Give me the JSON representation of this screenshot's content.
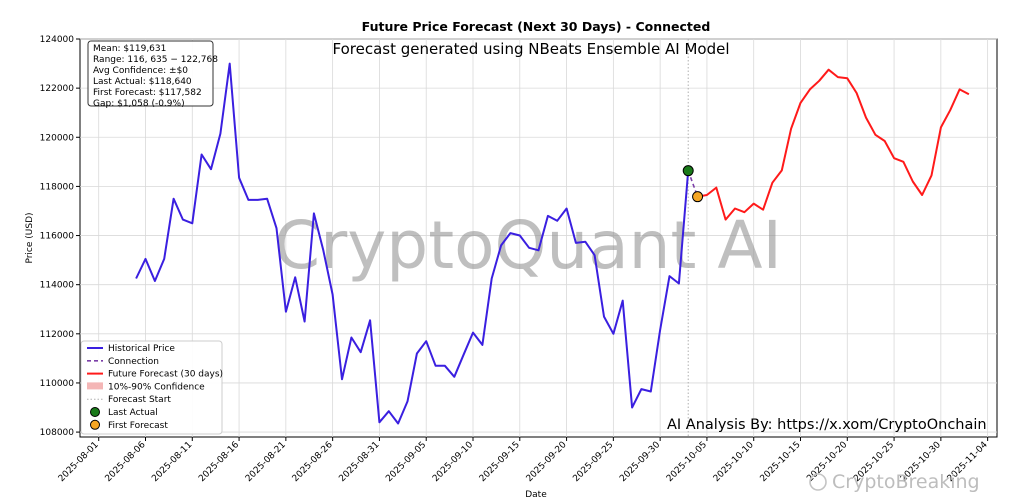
{
  "chart_data": {
    "type": "line",
    "title": "Future Price Forecast (Next 30 Days) - Connected",
    "subtitle": "Forecast generated using NBeats Ensemble AI Model",
    "xlabel": "Date",
    "ylabel": "Price (USD)",
    "ylim": [
      107800,
      124000
    ],
    "xlim": [
      "2025-07-30",
      "2025-11-05"
    ],
    "y_ticks": [
      108000,
      110000,
      112000,
      114000,
      116000,
      118000,
      120000,
      122000,
      124000
    ],
    "x_ticks": [
      "2025-08-01",
      "2025-08-06",
      "2025-08-11",
      "2025-08-16",
      "2025-08-21",
      "2025-08-26",
      "2025-08-31",
      "2025-09-05",
      "2025-09-10",
      "2025-09-15",
      "2025-09-20",
      "2025-09-25",
      "2025-09-30",
      "2025-10-05",
      "2025-10-10",
      "2025-10-15",
      "2025-10-20",
      "2025-10-25",
      "2025-10-30",
      "2025-11-04"
    ],
    "grid": true,
    "legend_position": "lower-left",
    "series": [
      {
        "name": "Historical Price",
        "color": "#3a1fe0",
        "points": [
          [
            "2025-08-05",
            114250
          ],
          [
            "2025-08-06",
            115050
          ],
          [
            "2025-08-07",
            114150
          ],
          [
            "2025-08-08",
            115050
          ],
          [
            "2025-08-09",
            117500
          ],
          [
            "2025-08-10",
            116650
          ],
          [
            "2025-08-11",
            116500
          ],
          [
            "2025-08-12",
            119300
          ],
          [
            "2025-08-13",
            118700
          ],
          [
            "2025-08-14",
            120150
          ],
          [
            "2025-08-15",
            123000
          ],
          [
            "2025-08-16",
            118350
          ],
          [
            "2025-08-17",
            117450
          ],
          [
            "2025-08-18",
            117450
          ],
          [
            "2025-08-19",
            117500
          ],
          [
            "2025-08-20",
            116300
          ],
          [
            "2025-08-21",
            112900
          ],
          [
            "2025-08-22",
            114300
          ],
          [
            "2025-08-23",
            112500
          ],
          [
            "2025-08-24",
            116900
          ],
          [
            "2025-08-25",
            115400
          ],
          [
            "2025-08-26",
            113600
          ],
          [
            "2025-08-27",
            110150
          ],
          [
            "2025-08-28",
            111850
          ],
          [
            "2025-08-29",
            111250
          ],
          [
            "2025-08-30",
            112550
          ],
          [
            "2025-08-31",
            108400
          ],
          [
            "2025-09-01",
            108850
          ],
          [
            "2025-09-02",
            108350
          ],
          [
            "2025-09-03",
            109250
          ],
          [
            "2025-09-04",
            111200
          ],
          [
            "2025-09-05",
            111700
          ],
          [
            "2025-09-06",
            110700
          ],
          [
            "2025-09-07",
            110700
          ],
          [
            "2025-09-08",
            110250
          ],
          [
            "2025-09-09",
            111150
          ],
          [
            "2025-09-10",
            112050
          ],
          [
            "2025-09-11",
            111550
          ],
          [
            "2025-09-12",
            114250
          ],
          [
            "2025-09-13",
            115600
          ],
          [
            "2025-09-14",
            116100
          ],
          [
            "2025-09-15",
            116000
          ],
          [
            "2025-09-16",
            115500
          ],
          [
            "2025-09-17",
            115400
          ],
          [
            "2025-09-18",
            116800
          ],
          [
            "2025-09-19",
            116600
          ],
          [
            "2025-09-20",
            117100
          ],
          [
            "2025-09-21",
            115700
          ],
          [
            "2025-09-22",
            115750
          ],
          [
            "2025-09-23",
            115200
          ],
          [
            "2025-09-24",
            112700
          ],
          [
            "2025-09-25",
            112000
          ],
          [
            "2025-09-26",
            113350
          ],
          [
            "2025-09-27",
            109000
          ],
          [
            "2025-09-28",
            109750
          ],
          [
            "2025-09-29",
            109650
          ],
          [
            "2025-09-30",
            112150
          ],
          [
            "2025-10-01",
            114350
          ],
          [
            "2025-10-02",
            114050
          ],
          [
            "2025-10-03",
            118640
          ]
        ]
      },
      {
        "name": "Connection",
        "color": "#7b3fa8",
        "dashed": true,
        "points": [
          [
            "2025-10-03",
            118640
          ],
          [
            "2025-10-04",
            117582
          ]
        ]
      },
      {
        "name": "Future Forecast (30 days)",
        "color": "#ff1a1a",
        "points": [
          [
            "2025-10-04",
            117582
          ],
          [
            "2025-10-05",
            117650
          ],
          [
            "2025-10-06",
            117950
          ],
          [
            "2025-10-07",
            116650
          ],
          [
            "2025-10-08",
            117100
          ],
          [
            "2025-10-09",
            116950
          ],
          [
            "2025-10-10",
            117300
          ],
          [
            "2025-10-11",
            117050
          ],
          [
            "2025-10-12",
            118150
          ],
          [
            "2025-10-13",
            118650
          ],
          [
            "2025-10-14",
            120350
          ],
          [
            "2025-10-15",
            121400
          ],
          [
            "2025-10-16",
            121950
          ],
          [
            "2025-10-17",
            122300
          ],
          [
            "2025-10-18",
            122750
          ],
          [
            "2025-10-19",
            122450
          ],
          [
            "2025-10-20",
            122400
          ],
          [
            "2025-10-21",
            121800
          ],
          [
            "2025-10-22",
            120800
          ],
          [
            "2025-10-23",
            120100
          ],
          [
            "2025-10-24",
            119850
          ],
          [
            "2025-10-25",
            119150
          ],
          [
            "2025-10-26",
            119000
          ],
          [
            "2025-10-27",
            118200
          ],
          [
            "2025-10-28",
            117650
          ],
          [
            "2025-10-29",
            118450
          ],
          [
            "2025-10-30",
            120400
          ],
          [
            "2025-10-31",
            121100
          ],
          [
            "2025-11-01",
            121950
          ],
          [
            "2025-11-02",
            121750
          ]
        ]
      }
    ],
    "markers": [
      {
        "name": "Last Actual",
        "date": "2025-10-03",
        "value": 118640,
        "color": "#1a7a1a"
      },
      {
        "name": "First Forecast",
        "date": "2025-10-04",
        "value": 117582,
        "color": "#f5a623"
      }
    ],
    "forecast_start": "2025-10-03",
    "legend": [
      {
        "label": "Historical Price",
        "kind": "line",
        "color": "#3a1fe0"
      },
      {
        "label": "Connection",
        "kind": "dashed",
        "color": "#7b3fa8"
      },
      {
        "label": "Future Forecast (30 days)",
        "kind": "line",
        "color": "#ff1a1a"
      },
      {
        "label": "10%-90% Confidence",
        "kind": "patch",
        "color": "#f4b6b6"
      },
      {
        "label": "Forecast Start",
        "kind": "dotted",
        "color": "#b0b0b0"
      },
      {
        "label": "Last Actual",
        "kind": "dot",
        "color": "#1a7a1a"
      },
      {
        "label": "First Forecast",
        "kind": "dot",
        "color": "#f5a623"
      }
    ],
    "stats_box": [
      "Mean: $119,631",
      "Range: 116, 635 − 122,768",
      "Avg Confidence: ±$0",
      "Last Actual: $118,640",
      "First Forecast: $117,582",
      "Gap: $1,058 (-0.9%)"
    ],
    "watermark": "CryptoQuant AI",
    "annotation": "AI Analysis By: https://x.xom/CryptoOnchain"
  },
  "brand_watermark": "CryptoBreaking"
}
